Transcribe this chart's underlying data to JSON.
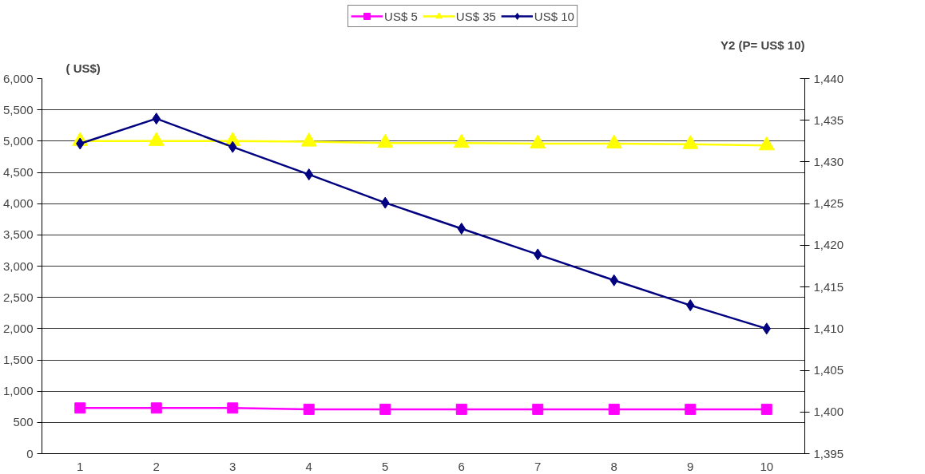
{
  "chart_data": {
    "type": "line",
    "ylabel": "( US$)",
    "y2label": "Y2 (P= US$ 10)",
    "categories": [
      "1",
      "2",
      "3",
      "4",
      "5",
      "6",
      "7",
      "8",
      "9",
      "10"
    ],
    "series": [
      {
        "name": "US$ 5",
        "color": "#ff00ff",
        "marker": "square",
        "values": [
          730,
          730,
          730,
          710,
          710,
          710,
          710,
          710,
          710,
          710
        ]
      },
      {
        "name": "US$ 35",
        "color": "#ffff00",
        "marker": "triangle",
        "values": [
          5000,
          5000,
          5000,
          4990,
          4970,
          4970,
          4960,
          4960,
          4950,
          4930
        ]
      },
      {
        "name": "US$ 10",
        "color": "#000080",
        "marker": "diamond",
        "axis": "y2",
        "values": [
          1432.2,
          1435.2,
          1431.8,
          1428.5,
          1425.1,
          1422.0,
          1418.9,
          1415.8,
          1412.8,
          1410.0
        ]
      }
    ],
    "ylim": [
      0,
      6000
    ],
    "yticks": [
      {
        "value": 0,
        "label": "0"
      },
      {
        "value": 500,
        "label": "500"
      },
      {
        "value": 1000,
        "label": "1,000"
      },
      {
        "value": 1500,
        "label": "1,500"
      },
      {
        "value": 2000,
        "label": "2,000"
      },
      {
        "value": 2500,
        "label": "2,500"
      },
      {
        "value": 3000,
        "label": "3,000"
      },
      {
        "value": 3500,
        "label": "3,500"
      },
      {
        "value": 4000,
        "label": "4,000"
      },
      {
        "value": 4500,
        "label": "4,500"
      },
      {
        "value": 5000,
        "label": "5,000"
      },
      {
        "value": 5500,
        "label": "5,500"
      },
      {
        "value": 6000,
        "label": "6,000"
      }
    ],
    "y2lim": [
      1395,
      1440
    ],
    "y2ticks": [
      {
        "value": 1395,
        "label": "1,395"
      },
      {
        "value": 1400,
        "label": "1,400"
      },
      {
        "value": 1405,
        "label": "1,405"
      },
      {
        "value": 1410,
        "label": "1,410"
      },
      {
        "value": 1415,
        "label": "1,415"
      },
      {
        "value": 1420,
        "label": "1,420"
      },
      {
        "value": 1425,
        "label": "1,425"
      },
      {
        "value": 1430,
        "label": "1,430"
      },
      {
        "value": 1435,
        "label": "1,435"
      },
      {
        "value": 1440,
        "label": "1,440"
      }
    ],
    "grid": "y",
    "legend": "top",
    "line_style": "solid"
  }
}
